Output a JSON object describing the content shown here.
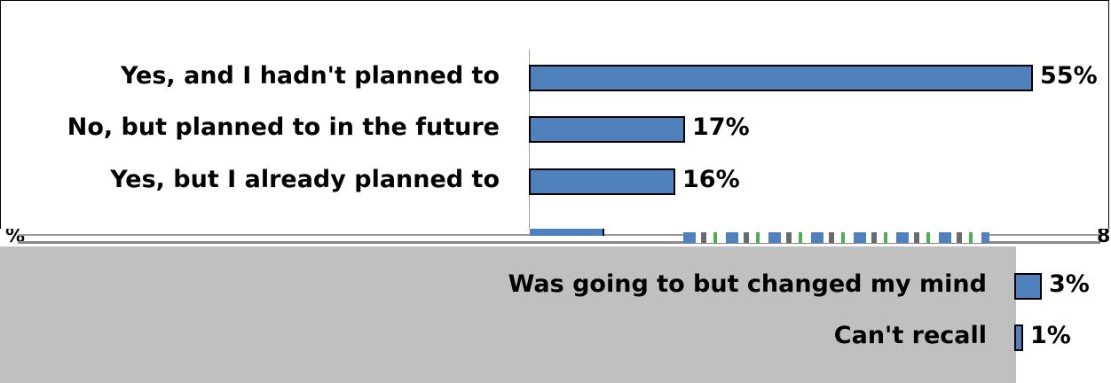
{
  "chart_data": {
    "type": "bar",
    "orientation": "horizontal",
    "categories": [
      "Yes, and I hadn't planned to",
      "No, but planned to in the future",
      "Yes, but I already planned to",
      "Was going to but changed my mind",
      "Can't recall"
    ],
    "values": [
      55,
      17,
      16,
      3,
      1
    ],
    "value_labels": [
      "55%",
      "17%",
      "16%",
      "3%",
      "1%"
    ],
    "bar_color": "#4f81bd",
    "title": "",
    "xlabel": "",
    "ylabel": "",
    "grid": false
  },
  "glitch": {
    "left_fragment": "%",
    "right_fragment": "8"
  }
}
